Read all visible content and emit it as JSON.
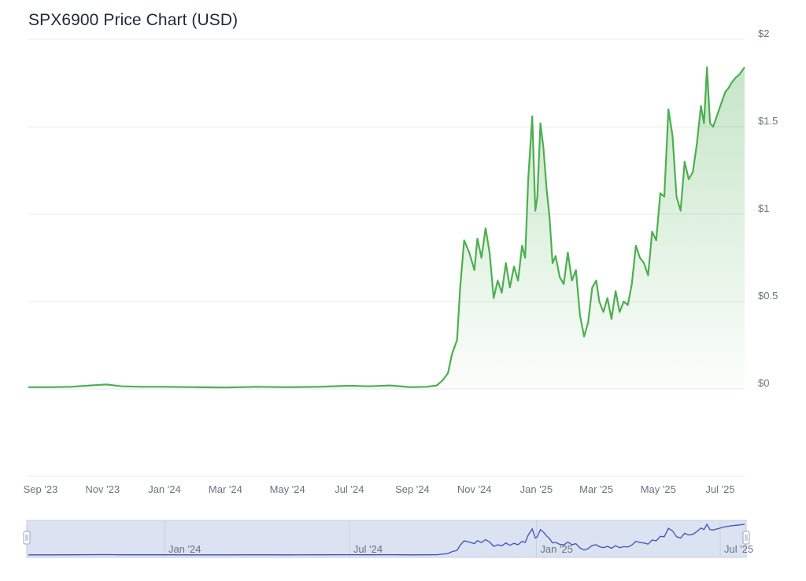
{
  "chart_data": {
    "type": "area",
    "title": "SPX6900 Price Chart (USD)",
    "y_tick_labels": [
      "$0",
      "$0.5",
      "$1",
      "$1.5",
      "$2"
    ],
    "y_tick_values": [
      0,
      0.5,
      1,
      1.5,
      2
    ],
    "ylim": [
      -0.5,
      2
    ],
    "grid": true,
    "x_tick_labels": [
      "Sep '23",
      "Nov '23",
      "Jan '24",
      "Mar '24",
      "May '24",
      "Jul '24",
      "Sep '24",
      "Nov '24",
      "Jan '25",
      "Mar '25",
      "May '25",
      "Jul '25"
    ],
    "x_tick_dates": [
      "2023-09-01",
      "2023-11-01",
      "2024-01-01",
      "2024-03-01",
      "2024-05-01",
      "2024-07-01",
      "2024-09-01",
      "2024-11-01",
      "2025-01-01",
      "2025-03-01",
      "2025-05-01",
      "2025-07-01"
    ],
    "navigator_tick_labels": [
      "Jan '24",
      "Jul '24",
      "Jan '25",
      "Jul '25"
    ],
    "navigator_tick_dates": [
      "2024-01-01",
      "2024-07-01",
      "2025-01-01",
      "2025-07-01"
    ],
    "line_color": "#4caf50",
    "navigator_line_color": "#3f51b5",
    "navigator_fill": "#dbe2f2",
    "series": [
      {
        "x": [
          "2023-08-20",
          "2023-09-10",
          "2023-10-01",
          "2023-10-20",
          "2023-11-05",
          "2023-11-20",
          "2023-12-10",
          "2024-01-01",
          "2024-02-01",
          "2024-03-01",
          "2024-04-01",
          "2024-05-01",
          "2024-06-01",
          "2024-07-01",
          "2024-07-20",
          "2024-08-10",
          "2024-08-30",
          "2024-09-15",
          "2024-09-25",
          "2024-10-01",
          "2024-10-06",
          "2024-10-10",
          "2024-10-15",
          "2024-10-18",
          "2024-10-22",
          "2024-10-27",
          "2024-11-01",
          "2024-11-04",
          "2024-11-08",
          "2024-11-12",
          "2024-11-16",
          "2024-11-20",
          "2024-11-24",
          "2024-11-28",
          "2024-12-02",
          "2024-12-06",
          "2024-12-10",
          "2024-12-14",
          "2024-12-18",
          "2024-12-21",
          "2024-12-24",
          "2024-12-28",
          "2024-12-31",
          "2025-01-02",
          "2025-01-05",
          "2025-01-08",
          "2025-01-11",
          "2025-01-14",
          "2025-01-17",
          "2025-01-20",
          "2025-01-24",
          "2025-01-28",
          "2025-02-01",
          "2025-02-05",
          "2025-02-09",
          "2025-02-13",
          "2025-02-17",
          "2025-02-21",
          "2025-02-25",
          "2025-03-01",
          "2025-03-04",
          "2025-03-08",
          "2025-03-12",
          "2025-03-16",
          "2025-03-20",
          "2025-03-24",
          "2025-03-28",
          "2025-04-01",
          "2025-04-05",
          "2025-04-09",
          "2025-04-13",
          "2025-04-17",
          "2025-04-21",
          "2025-04-25",
          "2025-04-29",
          "2025-05-03",
          "2025-05-07",
          "2025-05-11",
          "2025-05-15",
          "2025-05-19",
          "2025-05-23",
          "2025-05-27",
          "2025-05-31",
          "2025-06-04",
          "2025-06-08",
          "2025-06-12",
          "2025-06-15",
          "2025-06-18",
          "2025-06-21",
          "2025-06-24",
          "2025-06-27",
          "2025-06-30",
          "2025-07-03",
          "2025-07-06",
          "2025-07-09",
          "2025-07-12",
          "2025-07-16",
          "2025-07-20",
          "2025-07-25"
        ],
        "values": [
          0.01,
          0.01,
          0.012,
          0.02,
          0.025,
          0.015,
          0.012,
          0.012,
          0.01,
          0.008,
          0.012,
          0.01,
          0.012,
          0.018,
          0.015,
          0.02,
          0.01,
          0.012,
          0.02,
          0.05,
          0.09,
          0.2,
          0.28,
          0.58,
          0.85,
          0.78,
          0.68,
          0.86,
          0.75,
          0.92,
          0.78,
          0.52,
          0.62,
          0.55,
          0.72,
          0.58,
          0.7,
          0.62,
          0.82,
          0.75,
          1.2,
          1.56,
          1.02,
          1.1,
          1.52,
          1.38,
          1.15,
          0.98,
          0.72,
          0.76,
          0.64,
          0.6,
          0.78,
          0.62,
          0.68,
          0.42,
          0.3,
          0.38,
          0.58,
          0.62,
          0.5,
          0.44,
          0.52,
          0.4,
          0.56,
          0.44,
          0.5,
          0.48,
          0.6,
          0.82,
          0.75,
          0.72,
          0.65,
          0.9,
          0.85,
          1.12,
          1.1,
          1.6,
          1.45,
          1.1,
          1.02,
          1.3,
          1.2,
          1.24,
          1.4,
          1.62,
          1.52,
          1.84,
          1.52,
          1.5,
          1.55,
          1.6,
          1.65,
          1.7,
          1.72,
          1.75,
          1.78,
          1.8,
          1.84
        ]
      }
    ]
  }
}
